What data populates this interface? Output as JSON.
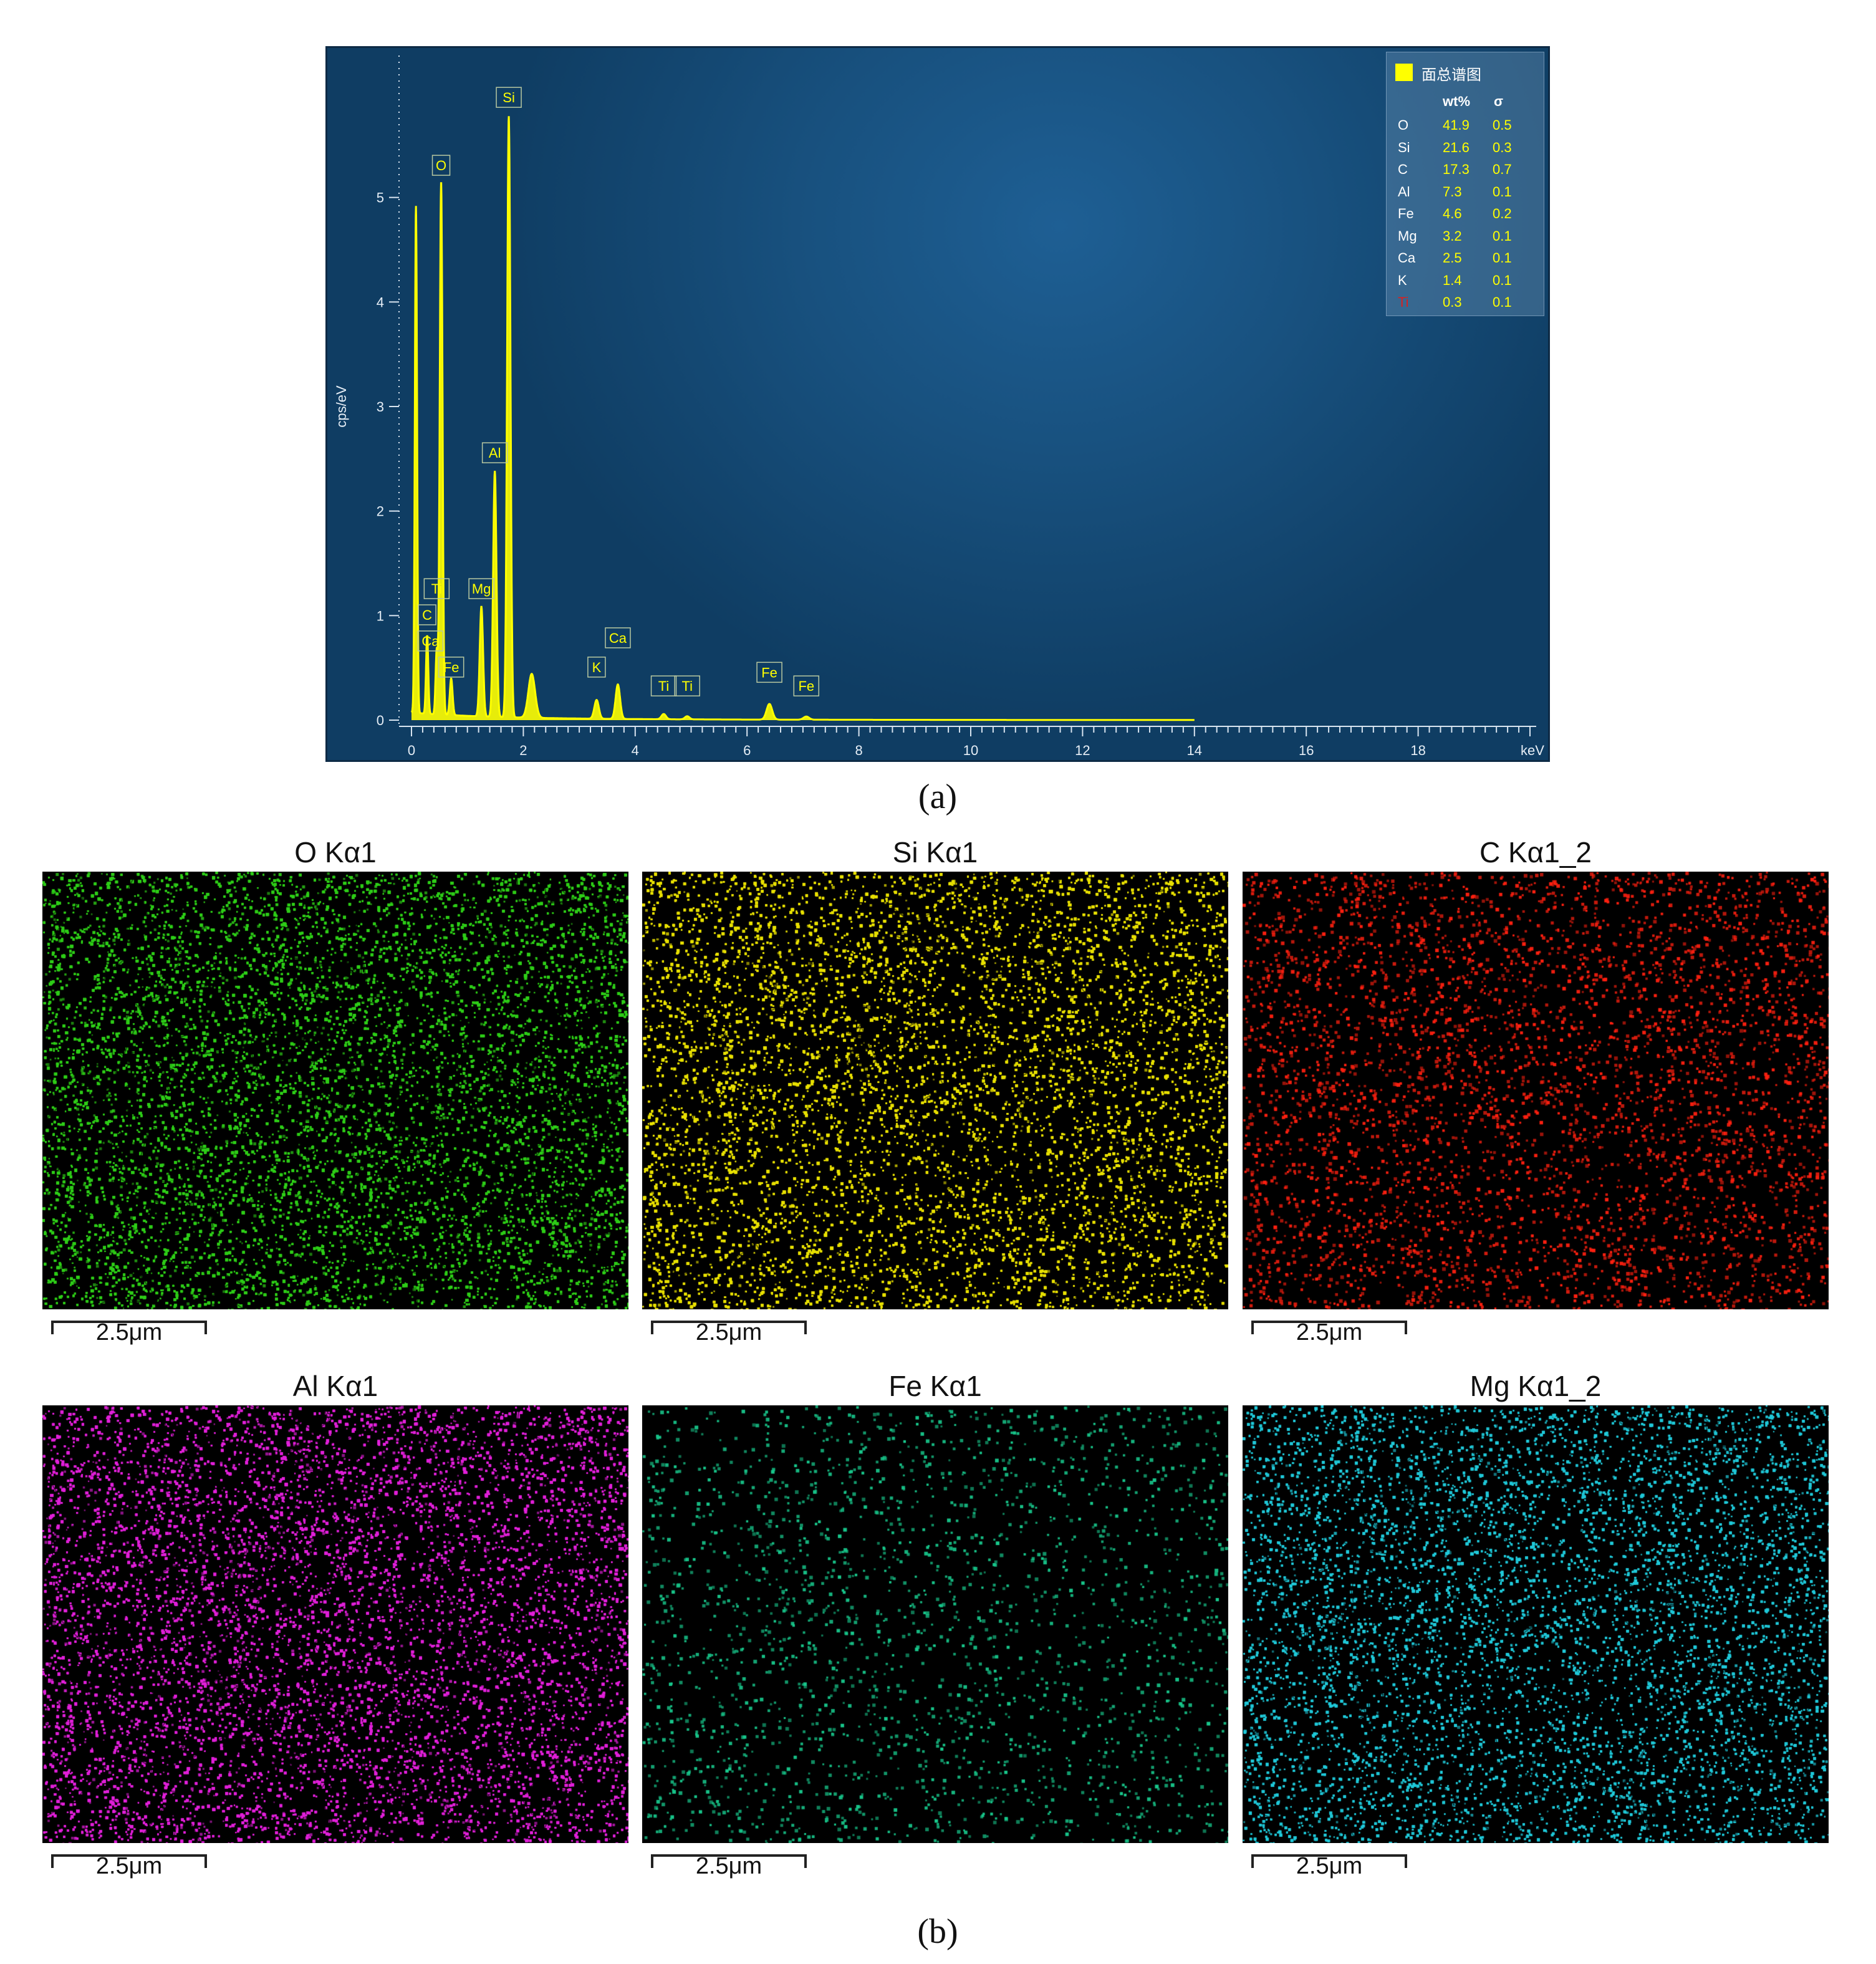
{
  "panel_a": {
    "caption": "(a)",
    "legend": {
      "title": "面总谱图",
      "col_wt": "wt%",
      "col_sigma": "σ",
      "rows": [
        {
          "el": "O",
          "wt": "41.9",
          "sigma": "0.5"
        },
        {
          "el": "Si",
          "wt": "21.6",
          "sigma": "0.3"
        },
        {
          "el": "C",
          "wt": "17.3",
          "sigma": "0.7"
        },
        {
          "el": "Al",
          "wt": "7.3",
          "sigma": "0.1"
        },
        {
          "el": "Fe",
          "wt": "4.6",
          "sigma": "0.2"
        },
        {
          "el": "Mg",
          "wt": "3.2",
          "sigma": "0.1"
        },
        {
          "el": "Ca",
          "wt": "2.5",
          "sigma": "0.1"
        },
        {
          "el": "K",
          "wt": "1.4",
          "sigma": "0.1"
        },
        {
          "el": "Ti",
          "wt": "0.3",
          "sigma": "0.1"
        }
      ],
      "highlight_color": "#d92020"
    }
  },
  "chart_data": {
    "type": "line",
    "xlabel": "keV",
    "ylabel": "cps/eV",
    "xlim": [
      0,
      20
    ],
    "ylim": [
      0,
      6
    ],
    "x_ticks": [
      "0",
      "2",
      "4",
      "6",
      "8",
      "10",
      "12",
      "14",
      "16",
      "18"
    ],
    "y_ticks": [
      "0",
      "1",
      "2",
      "3",
      "4",
      "5"
    ],
    "series_color": "#ffff00",
    "peaks": [
      {
        "energy": 0.08,
        "height": 4.85,
        "width": 0.02
      },
      {
        "energy": 0.28,
        "height": 0.75,
        "width": 0.02
      },
      {
        "energy": 0.45,
        "height": 0.6,
        "width": 0.02
      },
      {
        "energy": 0.53,
        "height": 5.1,
        "width": 0.025
      },
      {
        "energy": 0.71,
        "height": 0.35,
        "width": 0.025
      },
      {
        "energy": 1.25,
        "height": 1.05,
        "width": 0.03
      },
      {
        "energy": 1.49,
        "height": 2.35,
        "width": 0.03
      },
      {
        "energy": 1.74,
        "height": 5.75,
        "width": 0.03
      },
      {
        "energy": 2.15,
        "height": 0.42,
        "width": 0.06
      },
      {
        "energy": 3.31,
        "height": 0.18,
        "width": 0.04
      },
      {
        "energy": 3.69,
        "height": 0.33,
        "width": 0.04
      },
      {
        "energy": 4.51,
        "height": 0.05,
        "width": 0.04
      },
      {
        "energy": 4.93,
        "height": 0.03,
        "width": 0.04
      },
      {
        "energy": 6.4,
        "height": 0.15,
        "width": 0.05
      },
      {
        "energy": 7.06,
        "height": 0.03,
        "width": 0.05
      }
    ],
    "annotations": [
      {
        "label": "Si",
        "energy": 1.74,
        "y": 5.85
      },
      {
        "label": "O",
        "energy": 0.53,
        "y": 5.2
      },
      {
        "label": "Al",
        "energy": 1.49,
        "y": 2.45
      },
      {
        "label": "Ti",
        "energy": 0.45,
        "y": 1.15
      },
      {
        "label": "Mg",
        "energy": 1.25,
        "y": 1.15
      },
      {
        "label": "C",
        "energy": 0.28,
        "y": 0.9
      },
      {
        "label": "Ca",
        "energy": 0.34,
        "y": 0.65
      },
      {
        "label": "Fe",
        "energy": 0.71,
        "y": 0.4
      },
      {
        "label": "Ca",
        "energy": 3.69,
        "y": 0.68
      },
      {
        "label": "K",
        "energy": 3.31,
        "y": 0.4
      },
      {
        "label": "Ti",
        "energy": 4.51,
        "y": 0.22
      },
      {
        "label": "Ti",
        "energy": 4.93,
        "y": 0.22
      },
      {
        "label": "Fe",
        "energy": 6.4,
        "y": 0.35
      },
      {
        "label": "Fe",
        "energy": 7.06,
        "y": 0.22
      }
    ]
  },
  "panel_b": {
    "caption": "(b)",
    "maps": [
      {
        "title": "O Kα1",
        "color": "#2ecc18",
        "density": 0.62,
        "scale": "2.5μm"
      },
      {
        "title": "Si Kα1",
        "color": "#e8e000",
        "density": 0.6,
        "scale": "2.5μm"
      },
      {
        "title": "C Kα1_2",
        "color": "#ff2010",
        "density": 0.06,
        "scale": "2.5μm"
      },
      {
        "title": "Al Kα1",
        "color": "#e020d8",
        "density": 0.5,
        "scale": "2.5μm"
      },
      {
        "title": "Fe Kα1",
        "color": "#18c88c",
        "density": 0.03,
        "scale": "2.5μm"
      },
      {
        "title": "Mg Kα1_2",
        "color": "#20c8d8",
        "density": 0.32,
        "scale": "2.5μm"
      }
    ]
  }
}
